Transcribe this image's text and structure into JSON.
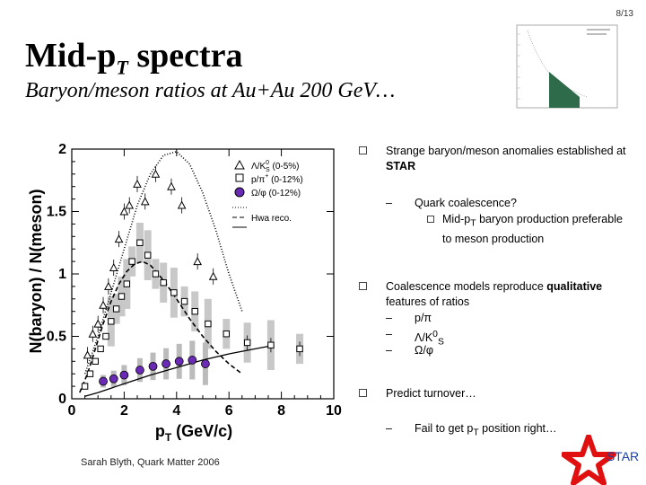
{
  "slide_number": "8/13",
  "title": {
    "main": "Mid-p",
    "sub": "T",
    "rest": " spectra"
  },
  "subtitle": "Baryon/meson ratios at Au+Au 200 GeV…",
  "bullets": [
    {
      "pre": "Strange baryon/meson anomalies established at ",
      "strong": "STAR"
    },
    {
      "text": "Quark coalescence?"
    },
    {
      "pre": "Mid-p",
      "sub": "T",
      "post": " baryon production preferable to meson production"
    },
    {
      "pre": "Coalescence models reproduce ",
      "strong": "qualitative",
      "post": " features of ratios"
    },
    {
      "text": "p/π"
    },
    {
      "pre": "Λ/K",
      "sup": "0",
      "sub": "S"
    },
    {
      "text": "Ω/φ"
    },
    {
      "text": "Predict turnover…"
    },
    {
      "pre": "Fail to get p",
      "sub": "T",
      "post": " position right…"
    }
  ],
  "dash": "–",
  "footer": "Sarah Blyth, Quark Matter 2006",
  "logo_text": "STAR",
  "colors": {
    "omega_phi": "#6a2ab5",
    "star_red": "#e01010",
    "star_blue": "#1a3fa8",
    "thumb_fill": "#2e6b4a"
  },
  "chart_data": {
    "type": "scatter",
    "ylabel": "N(baryon) / N(meson)",
    "xlabel": "p",
    "xlabel_sub": "T",
    "xlabel_unit": " (GeV/c)",
    "xlim": [
      0,
      10
    ],
    "ylim": [
      0,
      2
    ],
    "xticks": [
      "0",
      "2",
      "4",
      "6",
      "8",
      "10"
    ],
    "yticks": [
      "0",
      "0.5",
      "1",
      "1.5",
      "2"
    ],
    "legend": [
      {
        "label": "Λ/K",
        "label_sup": "0",
        "label_sub": "S",
        "label_tail": " (0-5%)",
        "marker": "triangle"
      },
      {
        "label": "p/π",
        "label_sup": "+",
        "label_tail": " (0-12%)",
        "marker": "square"
      },
      {
        "label": "Ω/φ",
        "label_tail": " (0-12%)",
        "marker": "circle"
      },
      {
        "label": "Hwa reco.",
        "marker": "lines"
      }
    ],
    "series": [
      {
        "name": "Λ/K0S (0-5%)",
        "marker": "triangle",
        "x": [
          0.6,
          0.8,
          1.0,
          1.2,
          1.4,
          1.6,
          1.8,
          2.0,
          2.2,
          2.5,
          2.8,
          3.2,
          3.8,
          4.2,
          4.8,
          5.4
        ],
        "y": [
          0.35,
          0.52,
          0.6,
          0.75,
          0.9,
          1.05,
          1.28,
          1.5,
          1.55,
          1.72,
          1.58,
          1.8,
          1.7,
          1.55,
          1.1,
          0.98
        ]
      },
      {
        "name": "p/π+ (0-12%)",
        "marker": "square",
        "x": [
          0.5,
          0.7,
          0.9,
          1.1,
          1.3,
          1.5,
          1.7,
          1.9,
          2.1,
          2.3,
          2.6,
          2.9,
          3.2,
          3.5,
          3.9,
          4.3,
          4.7,
          5.2,
          5.9,
          6.7,
          7.6,
          8.7
        ],
        "y": [
          0.1,
          0.2,
          0.3,
          0.4,
          0.5,
          0.62,
          0.72,
          0.82,
          0.92,
          1.1,
          1.25,
          1.15,
          1.0,
          0.93,
          0.85,
          0.78,
          0.7,
          0.6,
          0.52,
          0.45,
          0.43,
          0.4
        ]
      },
      {
        "name": "Ω/φ (0-12%)",
        "marker": "circle",
        "x": [
          1.2,
          1.6,
          2.0,
          2.6,
          3.1,
          3.6,
          4.1,
          4.6,
          5.1
        ],
        "y": [
          0.14,
          0.16,
          0.19,
          0.23,
          0.26,
          0.28,
          0.3,
          0.31,
          0.28
        ]
      }
    ],
    "curves": [
      {
        "name": "Hwa reco. p/π",
        "style": "dashed",
        "x": [
          0.3,
          0.6,
          0.9,
          1.2,
          1.5,
          1.8,
          2.1,
          2.4,
          2.7,
          3.0,
          3.3,
          3.6,
          4.0,
          4.5,
          5.0,
          5.5,
          6.0,
          6.5
        ],
        "y": [
          0.05,
          0.2,
          0.4,
          0.6,
          0.78,
          0.92,
          1.02,
          1.08,
          1.1,
          1.07,
          1.0,
          0.92,
          0.8,
          0.64,
          0.5,
          0.38,
          0.28,
          0.2
        ]
      },
      {
        "name": "Hwa reco. Λ/K",
        "style": "dotted",
        "x": [
          0.5,
          1.0,
          1.5,
          2.0,
          2.5,
          3.0,
          3.5,
          4.0,
          4.5,
          5.0,
          5.5,
          6.0,
          6.5
        ],
        "y": [
          0.2,
          0.5,
          0.85,
          1.2,
          1.55,
          1.8,
          1.95,
          1.98,
          1.88,
          1.65,
          1.35,
          1.0,
          0.7
        ]
      },
      {
        "name": "Hwa reco. Ω/φ",
        "style": "solid",
        "x": [
          0.5,
          1.0,
          2.0,
          3.0,
          4.0,
          5.0,
          6.0,
          7.0,
          7.5
        ],
        "y": [
          0.02,
          0.05,
          0.12,
          0.19,
          0.25,
          0.31,
          0.36,
          0.4,
          0.42
        ]
      }
    ]
  }
}
